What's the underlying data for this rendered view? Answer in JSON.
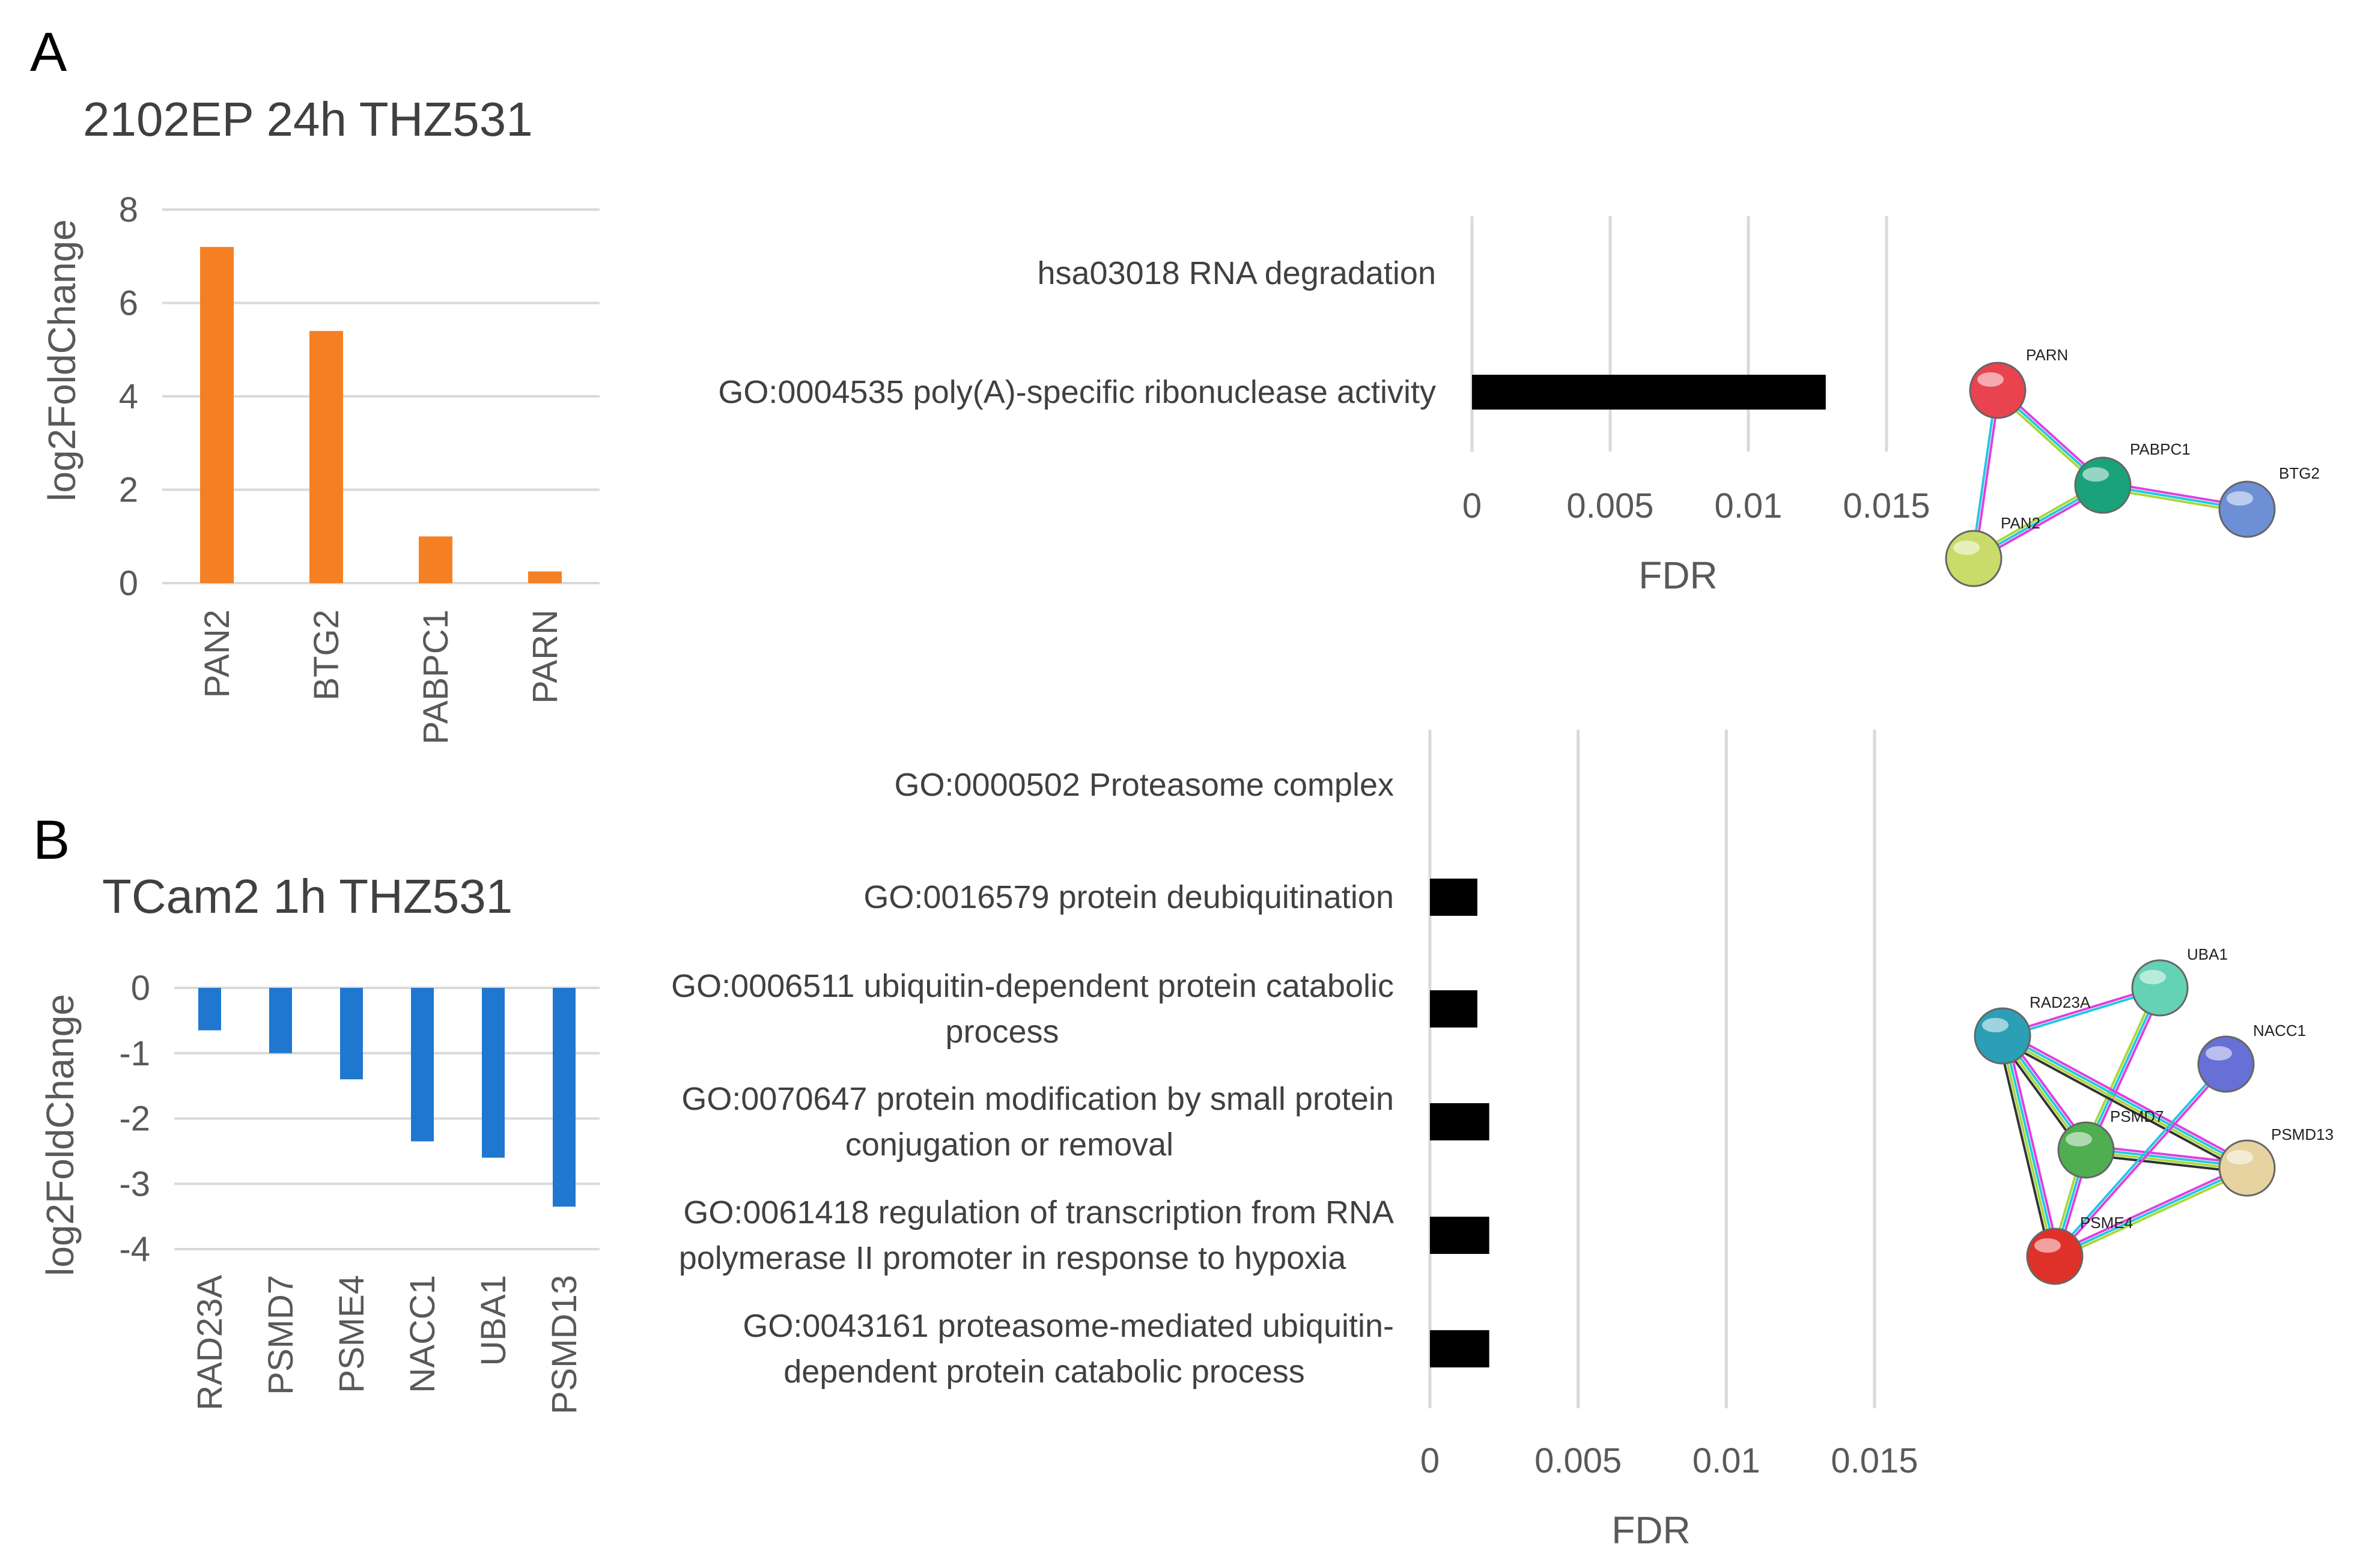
{
  "panels": {
    "a": "A",
    "b": "B"
  },
  "chart_data": [
    {
      "id": "a_bar",
      "type": "bar",
      "title": "2102EP 24h THZ531",
      "ylabel": "log2FoldChange",
      "xlabel": "",
      "ylim": [
        0,
        8
      ],
      "yticks": [
        0,
        2,
        4,
        6,
        8
      ],
      "categories": [
        "PAN2",
        "BTG2",
        "PABPC1",
        "PARN"
      ],
      "values": [
        7.2,
        5.4,
        1.0,
        0.25
      ],
      "color": "#F58024"
    },
    {
      "id": "a_fdr",
      "type": "bar",
      "orientation": "horizontal",
      "xlabel": "FDR",
      "xlim": [
        0,
        0.015
      ],
      "xticks": [
        "0",
        "0.005",
        "0.01",
        "0.015"
      ],
      "xtick_values": [
        0,
        0.005,
        0.01,
        0.015
      ],
      "categories": [
        [
          "hsa03018 RNA degradation"
        ],
        [
          "GO:0004535 poly(A)-specific ribonuclease activity"
        ]
      ],
      "values": [
        0,
        0.0128
      ],
      "color": "#000000"
    },
    {
      "id": "b_bar",
      "type": "bar",
      "title": "TCam2 1h THZ531",
      "ylabel": "log2FoldChange",
      "xlabel": "",
      "ylim": [
        -4,
        0
      ],
      "yticks": [
        0,
        -1,
        -2,
        -3,
        -4
      ],
      "categories": [
        "RAD23A",
        "PSMD7",
        "PSME4",
        "NACC1",
        "UBA1",
        "PSMD13"
      ],
      "values": [
        -0.65,
        -1.0,
        -1.4,
        -2.35,
        -2.6,
        -3.35
      ],
      "color": "#1F77D0"
    },
    {
      "id": "b_fdr",
      "type": "bar",
      "orientation": "horizontal",
      "xlabel": "FDR",
      "xlim": [
        0,
        0.015
      ],
      "xticks": [
        "0",
        "0.005",
        "0.01",
        "0.015"
      ],
      "xtick_values": [
        0,
        0.005,
        0.01,
        0.015
      ],
      "categories": [
        [
          "GO:0000502 Proteasome complex"
        ],
        [
          "GO:0016579 protein deubiquitination"
        ],
        [
          "GO:0006511 ubiquitin-dependent protein catabolic",
          "process"
        ],
        [
          "GO:0070647 protein modification by small protein",
          "conjugation or removal"
        ],
        [
          "GO:0061418 regulation of transcription from RNA",
          "polymerase II promoter in response to hypoxia"
        ],
        [
          "GO:0043161 proteasome-mediated ubiquitin-",
          "dependent protein catabolic process"
        ]
      ],
      "values": [
        0,
        0.0016,
        0.0016,
        0.002,
        0.002,
        0.002
      ],
      "color": "#000000"
    }
  ],
  "networks": {
    "a": {
      "nodes": [
        {
          "name": "PARN",
          "color": "#E8434F"
        },
        {
          "name": "PABPC1",
          "color": "#1AA37A"
        },
        {
          "name": "BTG2",
          "color": "#6C8FD6"
        },
        {
          "name": "PAN2",
          "color": "#C9DC6A"
        }
      ]
    },
    "b": {
      "nodes": [
        {
          "name": "UBA1",
          "color": "#64D2B4"
        },
        {
          "name": "RAD23A",
          "color": "#2B9FB5"
        },
        {
          "name": "NACC1",
          "color": "#6670D6"
        },
        {
          "name": "PSMD7",
          "color": "#4FAE50"
        },
        {
          "name": "PSMD13",
          "color": "#E6D3A0"
        },
        {
          "name": "PSME4",
          "color": "#E0302A"
        }
      ]
    }
  }
}
